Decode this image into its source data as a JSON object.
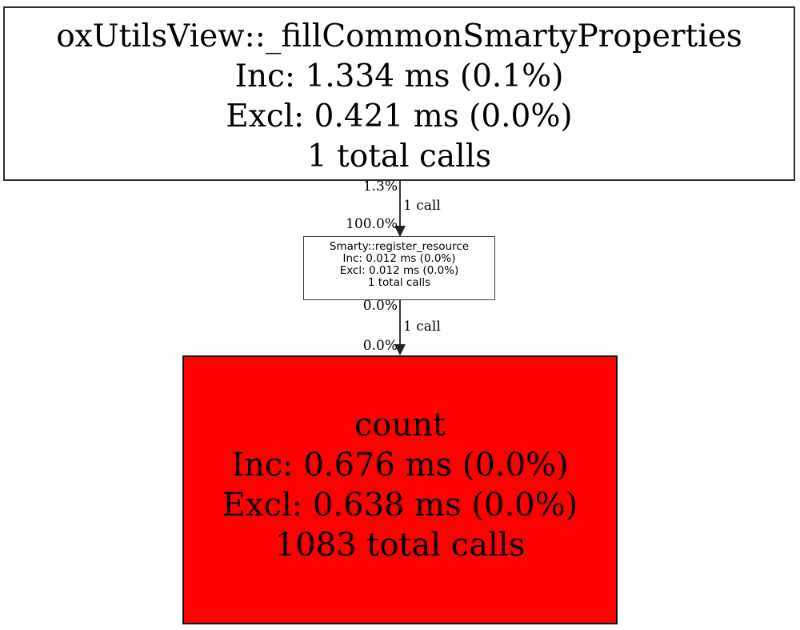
{
  "graph": {
    "background_color": "#ffffff",
    "edge_color": "#333333",
    "nodes": [
      {
        "title": "oxUtilsView::_fillCommonSmartyProperties",
        "inclusive": "Inc: 1.334 ms (0.1%)",
        "exclusive": "Excl: 0.421 ms (0.0%)",
        "total_calls": "1 total calls",
        "fill_color": "#ffffff",
        "text_color": "#000000"
      },
      {
        "title": "Smarty::register_resource",
        "inclusive": "Inc: 0.012 ms (0.0%)",
        "exclusive": "Excl: 0.012 ms (0.0%)",
        "total_calls": "1 total calls",
        "fill_color": "#ffffff",
        "text_color": "#000000"
      },
      {
        "title": "count",
        "inclusive": "Inc: 0.676 ms (0.0%)",
        "exclusive": "Excl: 0.638 ms (0.0%)",
        "total_calls": "1083 total calls",
        "fill_color": "#ff0000",
        "text_color": "#000000"
      }
    ],
    "edges": [
      {
        "source_percent": "1.3%",
        "calls_label": "1 call",
        "target_percent": "100.0%"
      },
      {
        "source_percent": "0.0%",
        "calls_label": "1 call",
        "target_percent": "0.0%"
      }
    ]
  }
}
